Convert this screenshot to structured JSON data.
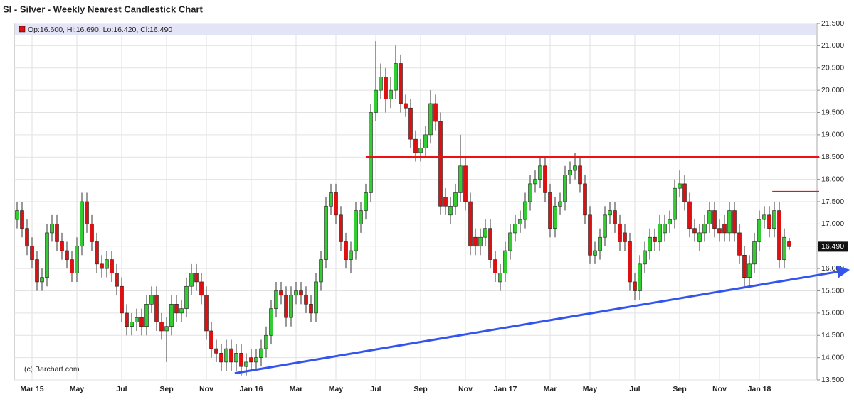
{
  "chart_data": {
    "type": "candlestick",
    "title": "SI - Silver - Weekly Nearest Candlestick Chart",
    "ohlc_label": "Op:16.600, Hi:16.690, Lo:16.420, Cl:16.490",
    "credit": "(c) Barchart.com",
    "up_color": "#33cc33",
    "down_color": "#dd1111",
    "grid": true,
    "ylim": [
      13.5,
      21.5
    ],
    "yticks": [
      {
        "value": 13.5,
        "label": "13.500"
      },
      {
        "value": 14,
        "label": "14.000"
      },
      {
        "value": 14.5,
        "label": "14.500"
      },
      {
        "value": 15,
        "label": "15.000"
      },
      {
        "value": 15.5,
        "label": "15.500"
      },
      {
        "value": 16,
        "label": "16.000"
      },
      {
        "value": 16.5,
        "label": "16.500"
      },
      {
        "value": 17,
        "label": "17.000"
      },
      {
        "value": 17.5,
        "label": "17.500"
      },
      {
        "value": 18,
        "label": "18.000"
      },
      {
        "value": 18.5,
        "label": "18.500"
      },
      {
        "value": 19,
        "label": "19.000"
      },
      {
        "value": 19.5,
        "label": "19.500"
      },
      {
        "value": 20,
        "label": "20.000"
      },
      {
        "value": 20.5,
        "label": "20.500"
      },
      {
        "value": 21,
        "label": "21.000"
      },
      {
        "value": 21.5,
        "label": "21.500"
      }
    ],
    "last_price": {
      "value": 16.49,
      "label": "16.490"
    },
    "categories": [
      null,
      null,
      null,
      "Mar 15",
      null,
      null,
      null,
      null,
      null,
      null,
      null,
      null,
      "May",
      null,
      null,
      null,
      null,
      null,
      null,
      null,
      null,
      "Jul",
      null,
      null,
      null,
      null,
      null,
      null,
      null,
      null,
      "Sep",
      null,
      null,
      null,
      null,
      null,
      null,
      null,
      "Nov",
      null,
      null,
      null,
      null,
      null,
      null,
      null,
      null,
      "Jan 16",
      null,
      null,
      null,
      null,
      null,
      null,
      null,
      null,
      "Mar",
      null,
      null,
      null,
      null,
      null,
      null,
      null,
      "May",
      null,
      null,
      null,
      null,
      null,
      null,
      null,
      "Jul",
      null,
      null,
      null,
      null,
      null,
      null,
      null,
      null,
      "Sep",
      null,
      null,
      null,
      null,
      null,
      null,
      null,
      null,
      "Nov",
      null,
      null,
      null,
      null,
      null,
      null,
      null,
      "Jan 17",
      null,
      null,
      null,
      null,
      null,
      null,
      null,
      null,
      "Mar",
      null,
      null,
      null,
      null,
      null,
      null,
      null,
      "May",
      null,
      null,
      null,
      null,
      null,
      null,
      null,
      null,
      "Jul",
      null,
      null,
      null,
      null,
      null,
      null,
      null,
      null,
      "Sep",
      null,
      null,
      null,
      null,
      null,
      null,
      null,
      "Nov",
      null,
      null,
      null,
      null,
      null,
      null,
      null,
      "Jan 18",
      null,
      null,
      null,
      null,
      null,
      null
    ],
    "open": [
      17.1,
      17.3,
      16.9,
      16.5,
      16.2,
      15.7,
      15.8,
      16.8,
      17.0,
      16.6,
      16.4,
      16.2,
      15.9,
      16.5,
      17.5,
      17.0,
      16.6,
      16.1,
      16.0,
      16.2,
      15.9,
      15.6,
      15.0,
      14.7,
      14.8,
      14.9,
      14.7,
      15.2,
      15.4,
      14.8,
      14.6,
      14.7,
      15.2,
      15.0,
      15.1,
      15.6,
      15.9,
      15.7,
      15.4,
      14.6,
      14.2,
      14.1,
      13.9,
      14.2,
      13.9,
      14.1,
      13.8,
      14.0,
      13.9,
      14.0,
      14.2,
      14.5,
      15.1,
      15.5,
      15.4,
      14.9,
      15.4,
      15.5,
      15.4,
      15.2,
      15.0,
      15.7,
      16.2,
      17.4,
      17.7,
      17.2,
      16.6,
      16.2,
      16.4,
      17.0,
      17.3,
      17.7,
      19.5,
      20.0,
      20.3,
      19.8,
      20.0,
      20.6,
      19.7,
      19.6,
      18.9,
      18.6,
      18.7,
      19.0,
      19.7,
      19.3,
      17.6,
      17.2,
      17.4,
      17.7,
      18.3,
      17.5,
      16.7,
      16.5,
      16.7,
      16.9,
      16.2,
      15.7,
      15.9,
      16.4,
      16.8,
      17.0,
      17.1,
      17.5,
      17.9,
      18.0,
      18.3,
      17.7,
      16.9,
      17.4,
      17.5,
      18.1,
      18.2,
      18.3,
      17.9,
      17.2,
      16.3,
      16.4,
      16.7,
      17.2,
      17.3,
      17.0,
      16.8,
      16.6,
      15.7,
      15.5,
      16.1,
      16.4,
      16.7,
      16.6,
      16.8,
      17.0,
      17.1,
      17.8,
      17.9,
      17.5,
      16.9,
      16.6,
      16.8,
      17.0,
      17.3,
      16.9,
      17.0,
      16.8,
      17.3,
      16.8,
      16.3,
      15.8,
      16.1,
      16.6,
      17.1,
      17.2,
      16.9,
      17.3,
      16.2,
      16.6
    ],
    "high": [
      17.5,
      17.5,
      17.1,
      16.7,
      16.4,
      16.0,
      17.0,
      17.2,
      17.2,
      16.8,
      16.6,
      16.4,
      16.7,
      17.7,
      17.7,
      17.2,
      16.8,
      16.3,
      16.4,
      16.4,
      16.1,
      15.8,
      15.2,
      15.0,
      15.1,
      15.1,
      15.4,
      15.6,
      15.6,
      15.0,
      14.9,
      15.4,
      15.4,
      15.3,
      15.8,
      16.1,
      16.1,
      15.9,
      15.6,
      14.8,
      14.4,
      14.3,
      14.4,
      14.4,
      14.3,
      14.3,
      14.1,
      14.2,
      14.2,
      14.4,
      14.7,
      15.3,
      15.7,
      15.7,
      15.6,
      15.6,
      15.7,
      15.7,
      15.6,
      15.4,
      15.9,
      16.4,
      17.6,
      17.9,
      17.9,
      17.4,
      16.8,
      16.6,
      17.5,
      17.5,
      17.9,
      19.7,
      21.1,
      20.6,
      20.5,
      20.3,
      21.0,
      20.8,
      19.9,
      19.8,
      19.1,
      18.9,
      19.2,
      20.0,
      19.9,
      19.5,
      17.8,
      17.6,
      17.9,
      19.0,
      18.5,
      17.7,
      16.9,
      16.9,
      17.1,
      17.1,
      16.4,
      16.1,
      16.6,
      17.0,
      17.2,
      17.3,
      17.7,
      18.1,
      18.2,
      18.5,
      18.5,
      17.9,
      17.6,
      17.7,
      18.3,
      18.4,
      18.6,
      18.5,
      18.1,
      17.4,
      16.6,
      16.9,
      17.4,
      17.5,
      17.5,
      17.2,
      17.0,
      16.8,
      15.9,
      16.3,
      16.6,
      16.9,
      16.9,
      17.2,
      17.2,
      17.3,
      18.0,
      18.2,
      18.1,
      17.7,
      17.1,
      17.0,
      17.2,
      17.5,
      17.5,
      17.1,
      17.2,
      17.5,
      17.5,
      17.0,
      16.5,
      16.3,
      16.8,
      17.3,
      17.4,
      17.4,
      17.5,
      17.5,
      16.9,
      16.69
    ],
    "low": [
      16.9,
      16.7,
      16.3,
      16.0,
      15.5,
      15.5,
      15.6,
      16.6,
      16.4,
      16.2,
      16.0,
      15.7,
      15.7,
      16.3,
      16.8,
      16.4,
      15.9,
      15.8,
      15.8,
      15.7,
      15.4,
      14.8,
      14.5,
      14.5,
      14.6,
      14.5,
      14.5,
      15.0,
      14.6,
      14.4,
      13.9,
      14.5,
      14.8,
      14.8,
      14.9,
      15.4,
      15.5,
      15.2,
      14.4,
      14.0,
      13.9,
      13.7,
      13.7,
      13.7,
      13.7,
      13.6,
      13.6,
      13.7,
      13.7,
      13.8,
      14.0,
      14.3,
      14.9,
      15.2,
      14.7,
      14.7,
      15.2,
      15.2,
      15.0,
      14.8,
      14.8,
      15.5,
      16.0,
      17.2,
      17.0,
      16.4,
      16.0,
      15.9,
      16.2,
      16.8,
      17.1,
      17.5,
      19.3,
      19.8,
      19.5,
      19.6,
      19.8,
      19.5,
      19.4,
      18.7,
      18.4,
      18.4,
      18.5,
      18.8,
      19.1,
      17.2,
      17.2,
      17.0,
      17.2,
      17.5,
      17.3,
      16.3,
      16.3,
      16.3,
      16.5,
      16.0,
      15.7,
      15.5,
      15.7,
      16.2,
      16.6,
      16.8,
      16.9,
      17.3,
      17.7,
      17.8,
      17.5,
      16.7,
      16.7,
      17.2,
      17.3,
      17.9,
      18.0,
      17.7,
      17.0,
      16.1,
      16.1,
      16.2,
      16.5,
      17.0,
      16.8,
      16.4,
      16.4,
      15.5,
      15.3,
      15.3,
      15.9,
      16.2,
      16.4,
      16.4,
      16.6,
      16.8,
      16.9,
      17.6,
      17.3,
      16.7,
      16.6,
      16.4,
      16.6,
      16.8,
      16.7,
      16.6,
      16.6,
      16.6,
      16.6,
      16.1,
      15.6,
      15.6,
      15.9,
      16.4,
      16.9,
      16.7,
      16.7,
      16.0,
      16.0,
      16.42
    ],
    "close": [
      17.3,
      16.9,
      16.5,
      16.2,
      15.7,
      15.8,
      16.8,
      17.0,
      16.6,
      16.4,
      16.2,
      15.9,
      16.5,
      17.5,
      17.0,
      16.6,
      16.1,
      16.0,
      16.2,
      15.9,
      15.6,
      15.0,
      14.7,
      14.8,
      14.9,
      14.7,
      15.2,
      15.4,
      14.8,
      14.6,
      14.7,
      15.2,
      15.0,
      15.1,
      15.6,
      15.9,
      15.7,
      15.4,
      14.6,
      14.2,
      14.1,
      13.9,
      14.2,
      13.9,
      14.1,
      13.8,
      13.9,
      13.9,
      14.0,
      14.2,
      14.5,
      15.1,
      15.5,
      15.4,
      14.9,
      15.4,
      15.5,
      15.4,
      15.2,
      15.0,
      15.7,
      16.2,
      17.4,
      17.7,
      17.2,
      16.6,
      16.2,
      16.4,
      17.3,
      17.3,
      17.7,
      19.5,
      20.0,
      20.3,
      19.8,
      20.0,
      20.6,
      19.7,
      19.6,
      18.9,
      18.6,
      18.7,
      19.0,
      19.7,
      19.3,
      17.4,
      17.4,
      17.4,
      17.7,
      18.3,
      17.5,
      16.5,
      16.5,
      16.7,
      16.9,
      16.2,
      15.9,
      15.9,
      16.4,
      16.8,
      17.0,
      17.1,
      17.5,
      17.9,
      18.0,
      18.3,
      17.7,
      16.9,
      17.4,
      17.5,
      18.1,
      18.2,
      18.3,
      17.9,
      17.2,
      16.3,
      16.4,
      16.7,
      17.2,
      17.3,
      17.0,
      16.6,
      16.6,
      15.7,
      15.5,
      16.1,
      16.4,
      16.7,
      16.6,
      17.0,
      17.0,
      17.1,
      17.8,
      17.9,
      17.5,
      16.9,
      16.8,
      16.8,
      17.0,
      17.3,
      16.9,
      16.8,
      16.8,
      17.3,
      16.8,
      16.3,
      15.8,
      16.1,
      16.6,
      17.1,
      17.2,
      16.9,
      17.3,
      16.2,
      16.7,
      16.49
    ],
    "lines": [
      {
        "color": "#ee1111",
        "width": 3,
        "x": [
          70,
          161
        ],
        "y": [
          18.5,
          18.5
        ]
      },
      {
        "color": "#ee1111",
        "width": 1.5,
        "x": [
          151.6,
          161
        ],
        "y": [
          17.73,
          17.73
        ]
      },
      {
        "color": "#3355ee",
        "width": 3,
        "arrow": true,
        "x": [
          43.7,
          165.9
        ],
        "y": [
          13.65,
          15.95
        ]
      }
    ]
  }
}
